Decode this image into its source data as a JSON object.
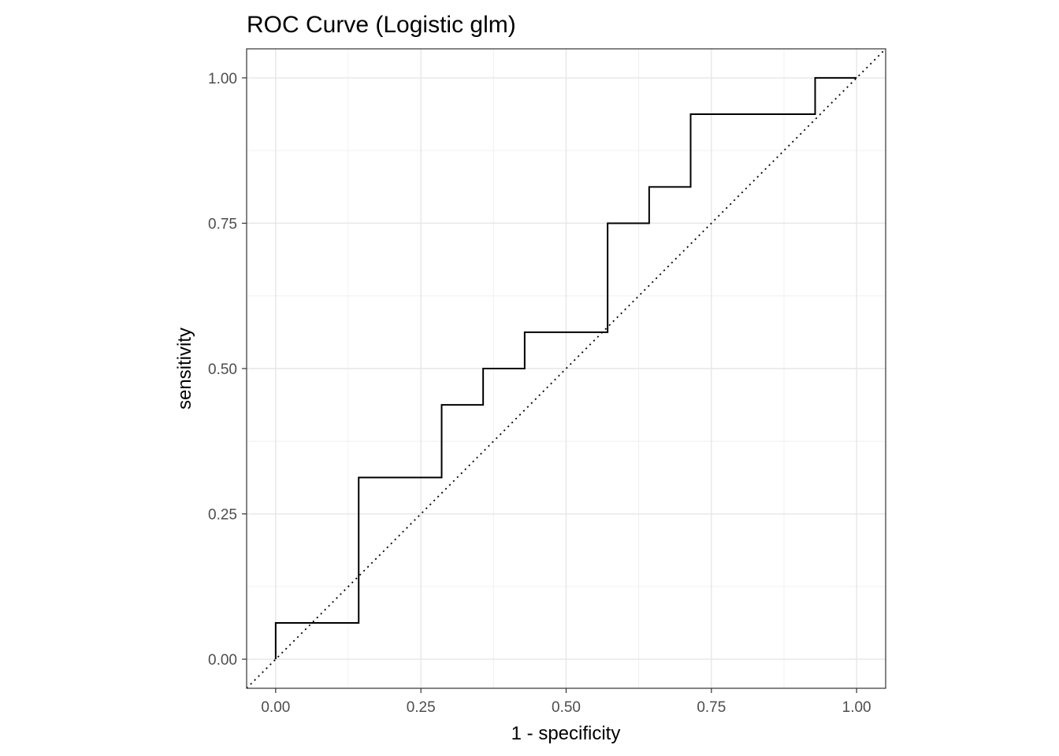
{
  "chart_data": {
    "type": "line",
    "title": "ROC Curve (Logistic glm)",
    "xlabel": "1 - specificity",
    "ylabel": "sensitivity",
    "xlim": [
      -0.05,
      1.05
    ],
    "ylim": [
      -0.05,
      1.05
    ],
    "x_ticks": [
      0,
      0.25,
      0.5,
      0.75,
      1
    ],
    "x_tick_labels": [
      "0.00",
      "0.25",
      "0.50",
      "0.75",
      "1.00"
    ],
    "y_ticks": [
      0,
      0.25,
      0.5,
      0.75,
      1
    ],
    "y_tick_labels": [
      "0.00",
      "0.25",
      "0.50",
      "0.75",
      "1.00"
    ],
    "grid": true,
    "series": [
      {
        "name": "roc",
        "style": "step",
        "color": "#000000",
        "x": [
          0,
          0,
          0.1429,
          0.1429,
          0.2857,
          0.2857,
          0.3571,
          0.3571,
          0.4286,
          0.4286,
          0.5714,
          0.5714,
          0.6429,
          0.6429,
          0.7143,
          0.7143,
          0.9286,
          0.9286,
          1
        ],
        "y": [
          0,
          0.0625,
          0.0625,
          0.3125,
          0.3125,
          0.4375,
          0.4375,
          0.5,
          0.5,
          0.5625,
          0.5625,
          0.75,
          0.75,
          0.8125,
          0.8125,
          0.9375,
          0.9375,
          1,
          1
        ]
      },
      {
        "name": "reference",
        "style": "dotted",
        "color": "#000000",
        "x": [
          -0.05,
          1.05
        ],
        "y": [
          -0.05,
          1.05
        ]
      }
    ]
  }
}
